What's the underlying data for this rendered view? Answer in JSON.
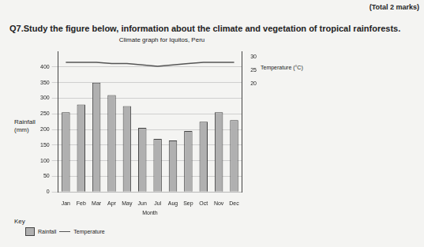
{
  "header": {
    "marks": "(Total 2 marks)",
    "question": "Q7.Study the figure below, information about the climate and vegetation of tropical rainforests."
  },
  "chart_data": {
    "type": "bar",
    "title": "Climate graph for Iquitos, Peru",
    "categories": [
      "Jan",
      "Feb",
      "Mar",
      "Apr",
      "May",
      "Jun",
      "Jul",
      "Aug",
      "Sep",
      "Oct",
      "Nov",
      "Dec"
    ],
    "x_label": "Month",
    "y_label": "Rainfall (mm)",
    "y2_label": "Temperature (°C)",
    "ylim": [
      0,
      450
    ],
    "yticks": [
      0,
      50,
      100,
      150,
      200,
      250,
      300,
      350,
      400
    ],
    "y2lim": [
      -20,
      32
    ],
    "y2ticks": [
      20,
      25,
      30
    ],
    "grid": true,
    "series": [
      {
        "name": "Rainfall",
        "type": "bar",
        "color": "#b0b0b0",
        "values": [
          255,
          280,
          350,
          310,
          275,
          205,
          170,
          165,
          195,
          225,
          255,
          230
        ]
      },
      {
        "name": "Temperature",
        "type": "line",
        "color": "#555555",
        "axis": "y2",
        "values": [
          28,
          28,
          28,
          27.5,
          27.5,
          27,
          26.5,
          27,
          27.5,
          28,
          28,
          28
        ]
      }
    ]
  },
  "key": {
    "title": "Key"
  }
}
